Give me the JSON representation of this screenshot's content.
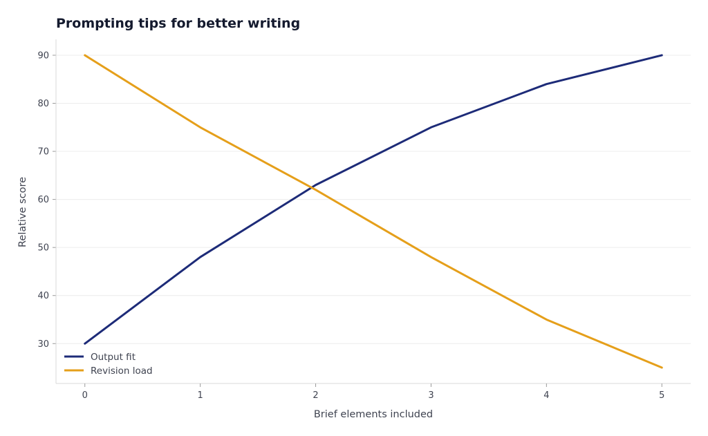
{
  "chart_data": {
    "type": "line",
    "title": "Prompting tips for better writing",
    "xlabel": "Brief elements included",
    "ylabel": "Relative score",
    "x": [
      0,
      1,
      2,
      3,
      4,
      5
    ],
    "xlim": [
      -0.25,
      5.25
    ],
    "ylim": [
      21.7,
      93.3
    ],
    "xticks": [
      0,
      1,
      2,
      3,
      4,
      5
    ],
    "yticks": [
      30,
      40,
      50,
      60,
      70,
      80,
      90
    ],
    "grid": "horizontal",
    "legend_position": "bottom-left",
    "series": [
      {
        "name": "Output fit",
        "color": "#1d2b78",
        "values": [
          30,
          48,
          63,
          75,
          84,
          90
        ]
      },
      {
        "name": "Revision load",
        "color": "#e59f1a",
        "values": [
          90,
          75,
          62,
          48,
          35,
          25
        ]
      }
    ]
  }
}
